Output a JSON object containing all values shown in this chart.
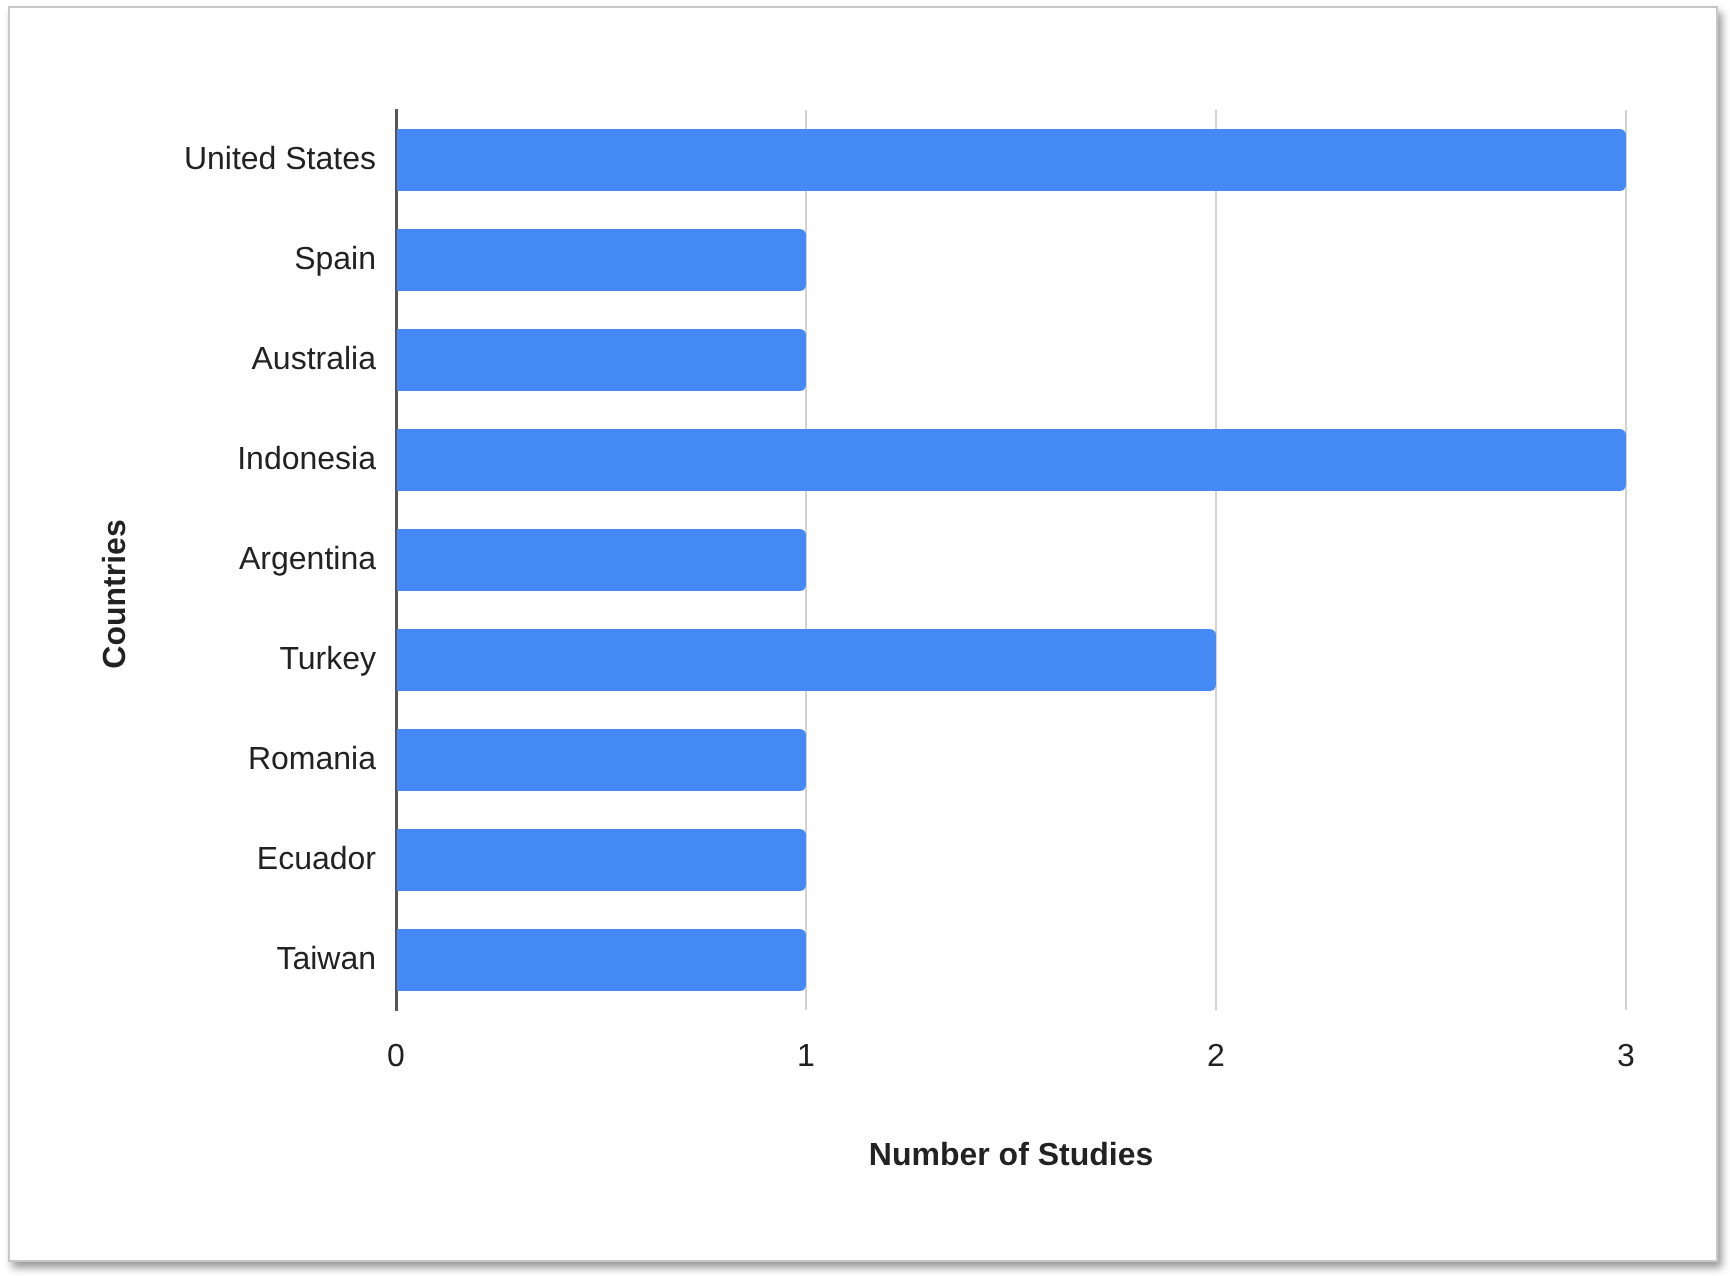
{
  "chart_data": {
    "type": "bar",
    "orientation": "horizontal",
    "categories": [
      "United States",
      "Spain",
      "Australia",
      "Indonesia",
      "Argentina",
      "Turkey",
      "Romania",
      "Ecuador",
      "Taiwan"
    ],
    "values": [
      3,
      1,
      1,
      3,
      1,
      2,
      1,
      1,
      1
    ],
    "color": "#4589f5",
    "xlim": [
      0,
      3
    ],
    "xticks": [
      0,
      1,
      2,
      3
    ],
    "grid": "x",
    "xlabel": "Number of Studies",
    "ylabel": "Countries"
  }
}
